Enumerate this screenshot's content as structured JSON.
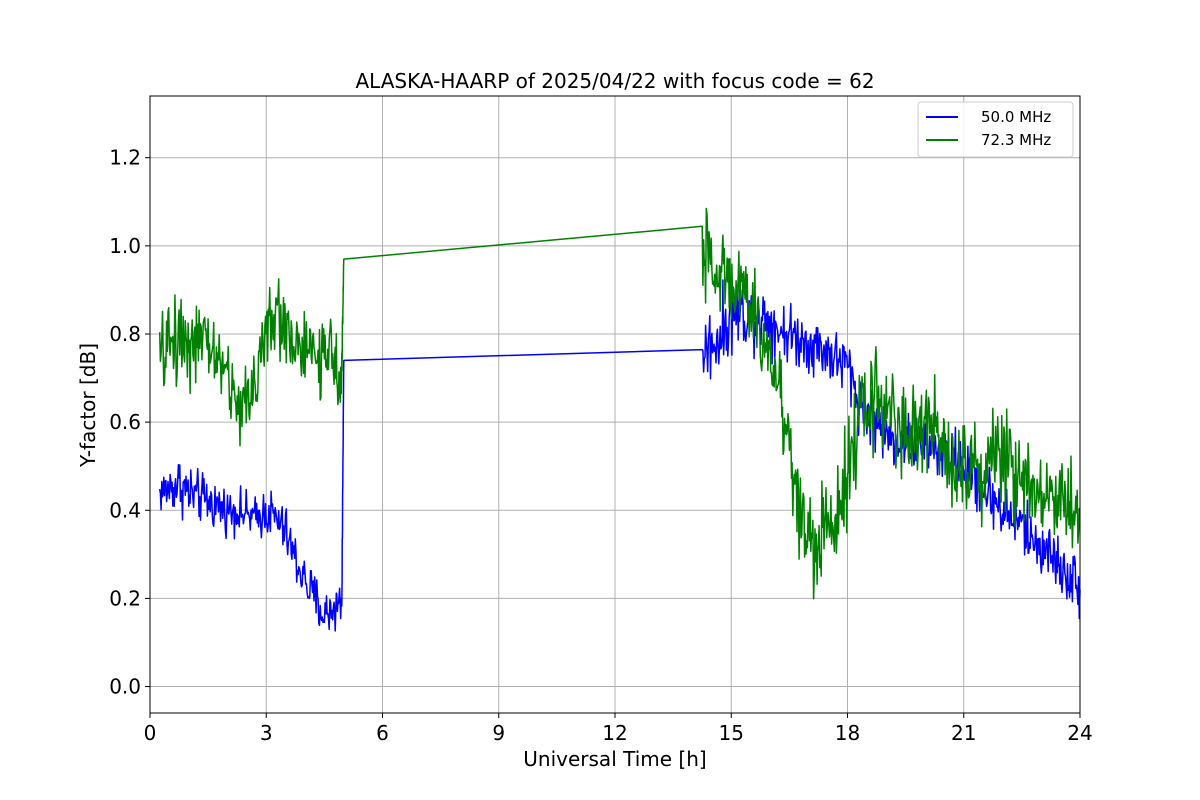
{
  "chart_data": {
    "type": "line",
    "title": "ALASKA-HAARP of 2025/04/22 with focus code = 62",
    "xlabel": "Universal Time [h]",
    "ylabel": "Y-factor [dB]",
    "xlim": [
      0,
      24
    ],
    "ylim": [
      -0.06,
      1.34
    ],
    "xticks": [
      0,
      3,
      6,
      9,
      12,
      15,
      18,
      21,
      24
    ],
    "xtick_labels": [
      "0",
      "3",
      "6",
      "9",
      "12",
      "15",
      "18",
      "21",
      "24"
    ],
    "yticks": [
      0.0,
      0.2,
      0.4,
      0.6,
      0.8,
      1.0,
      1.2
    ],
    "ytick_labels": [
      "0.0",
      "0.2",
      "0.4",
      "0.6",
      "0.8",
      "1.0",
      "1.2"
    ],
    "grid": true,
    "legend_position": "top-right",
    "series": [
      {
        "name": "50.0 MHz",
        "color": "#0000ff",
        "x": [
          0.25,
          0.5,
          0.75,
          1.0,
          1.25,
          1.5,
          1.75,
          2.0,
          2.25,
          2.5,
          2.75,
          3.0,
          3.25,
          3.5,
          3.75,
          4.0,
          4.25,
          4.5,
          4.75,
          4.95,
          5.0,
          14.25,
          14.5,
          14.75,
          15.0,
          15.25,
          15.5,
          15.75,
          16.0,
          16.25,
          16.5,
          16.75,
          17.0,
          17.25,
          17.5,
          17.75,
          18.0,
          18.25,
          18.5,
          18.75,
          19.0,
          19.25,
          19.5,
          19.75,
          20.0,
          20.25,
          20.5,
          20.75,
          21.0,
          21.25,
          21.5,
          21.75,
          22.0,
          22.25,
          22.5,
          22.75,
          23.0,
          23.25,
          23.5,
          23.75,
          24.0
        ],
        "y": [
          0.44,
          0.45,
          0.46,
          0.44,
          0.43,
          0.42,
          0.41,
          0.4,
          0.4,
          0.39,
          0.38,
          0.4,
          0.38,
          0.35,
          0.29,
          0.24,
          0.2,
          0.16,
          0.18,
          0.19,
          0.74,
          0.76,
          0.78,
          0.8,
          0.84,
          0.85,
          0.84,
          0.84,
          0.83,
          0.81,
          0.8,
          0.79,
          0.78,
          0.77,
          0.76,
          0.74,
          0.73,
          0.66,
          0.62,
          0.6,
          0.57,
          0.56,
          0.56,
          0.55,
          0.55,
          0.54,
          0.53,
          0.52,
          0.5,
          0.48,
          0.44,
          0.43,
          0.4,
          0.38,
          0.37,
          0.33,
          0.32,
          0.3,
          0.27,
          0.25,
          0.22
        ],
        "noise": [
          0.06,
          0.07,
          0.08,
          0.08,
          0.07,
          0.07,
          0.07,
          0.06,
          0.06,
          0.06,
          0.06,
          0.07,
          0.07,
          0.07,
          0.07,
          0.07,
          0.07,
          0.07,
          0.07,
          0.07,
          0.0,
          0.1,
          0.1,
          0.1,
          0.1,
          0.09,
          0.09,
          0.09,
          0.09,
          0.08,
          0.08,
          0.08,
          0.08,
          0.08,
          0.08,
          0.08,
          0.09,
          0.08,
          0.08,
          0.08,
          0.08,
          0.08,
          0.08,
          0.08,
          0.08,
          0.08,
          0.08,
          0.08,
          0.08,
          0.08,
          0.08,
          0.08,
          0.08,
          0.08,
          0.08,
          0.08,
          0.08,
          0.08,
          0.08,
          0.08,
          0.08
        ]
      },
      {
        "name": "72.3 MHz",
        "color": "#008000",
        "x": [
          0.25,
          0.5,
          0.75,
          1.0,
          1.25,
          1.5,
          1.75,
          2.0,
          2.25,
          2.5,
          2.75,
          3.0,
          3.25,
          3.5,
          3.75,
          4.0,
          4.25,
          4.5,
          4.75,
          4.95,
          5.0,
          14.25,
          14.5,
          14.75,
          15.0,
          15.25,
          15.5,
          15.75,
          16.0,
          16.25,
          16.5,
          16.75,
          17.0,
          17.25,
          17.5,
          17.75,
          18.0,
          18.25,
          18.5,
          18.75,
          19.0,
          19.25,
          19.5,
          19.75,
          20.0,
          20.25,
          20.5,
          20.75,
          21.0,
          21.25,
          21.5,
          21.75,
          22.0,
          22.25,
          22.5,
          22.75,
          23.0,
          23.25,
          23.5,
          23.75,
          24.0
        ],
        "y": [
          0.74,
          0.78,
          0.8,
          0.79,
          0.78,
          0.77,
          0.75,
          0.7,
          0.64,
          0.64,
          0.72,
          0.8,
          0.84,
          0.82,
          0.78,
          0.76,
          0.75,
          0.74,
          0.74,
          0.72,
          0.97,
          0.99,
          0.95,
          0.94,
          0.92,
          0.9,
          0.86,
          0.8,
          0.75,
          0.68,
          0.55,
          0.4,
          0.34,
          0.32,
          0.35,
          0.42,
          0.5,
          0.58,
          0.64,
          0.66,
          0.64,
          0.6,
          0.58,
          0.57,
          0.6,
          0.58,
          0.55,
          0.52,
          0.5,
          0.5,
          0.5,
          0.52,
          0.52,
          0.5,
          0.48,
          0.46,
          0.45,
          0.44,
          0.42,
          0.42,
          0.4
        ],
        "noise": [
          0.11,
          0.13,
          0.14,
          0.13,
          0.12,
          0.11,
          0.11,
          0.1,
          0.1,
          0.11,
          0.12,
          0.12,
          0.12,
          0.11,
          0.11,
          0.1,
          0.1,
          0.1,
          0.1,
          0.1,
          0.0,
          0.15,
          0.14,
          0.13,
          0.12,
          0.12,
          0.11,
          0.11,
          0.11,
          0.12,
          0.14,
          0.15,
          0.15,
          0.15,
          0.15,
          0.15,
          0.15,
          0.14,
          0.14,
          0.14,
          0.13,
          0.13,
          0.13,
          0.13,
          0.13,
          0.13,
          0.13,
          0.13,
          0.13,
          0.13,
          0.13,
          0.14,
          0.14,
          0.14,
          0.14,
          0.13,
          0.13,
          0.13,
          0.13,
          0.13,
          0.13
        ]
      }
    ]
  }
}
